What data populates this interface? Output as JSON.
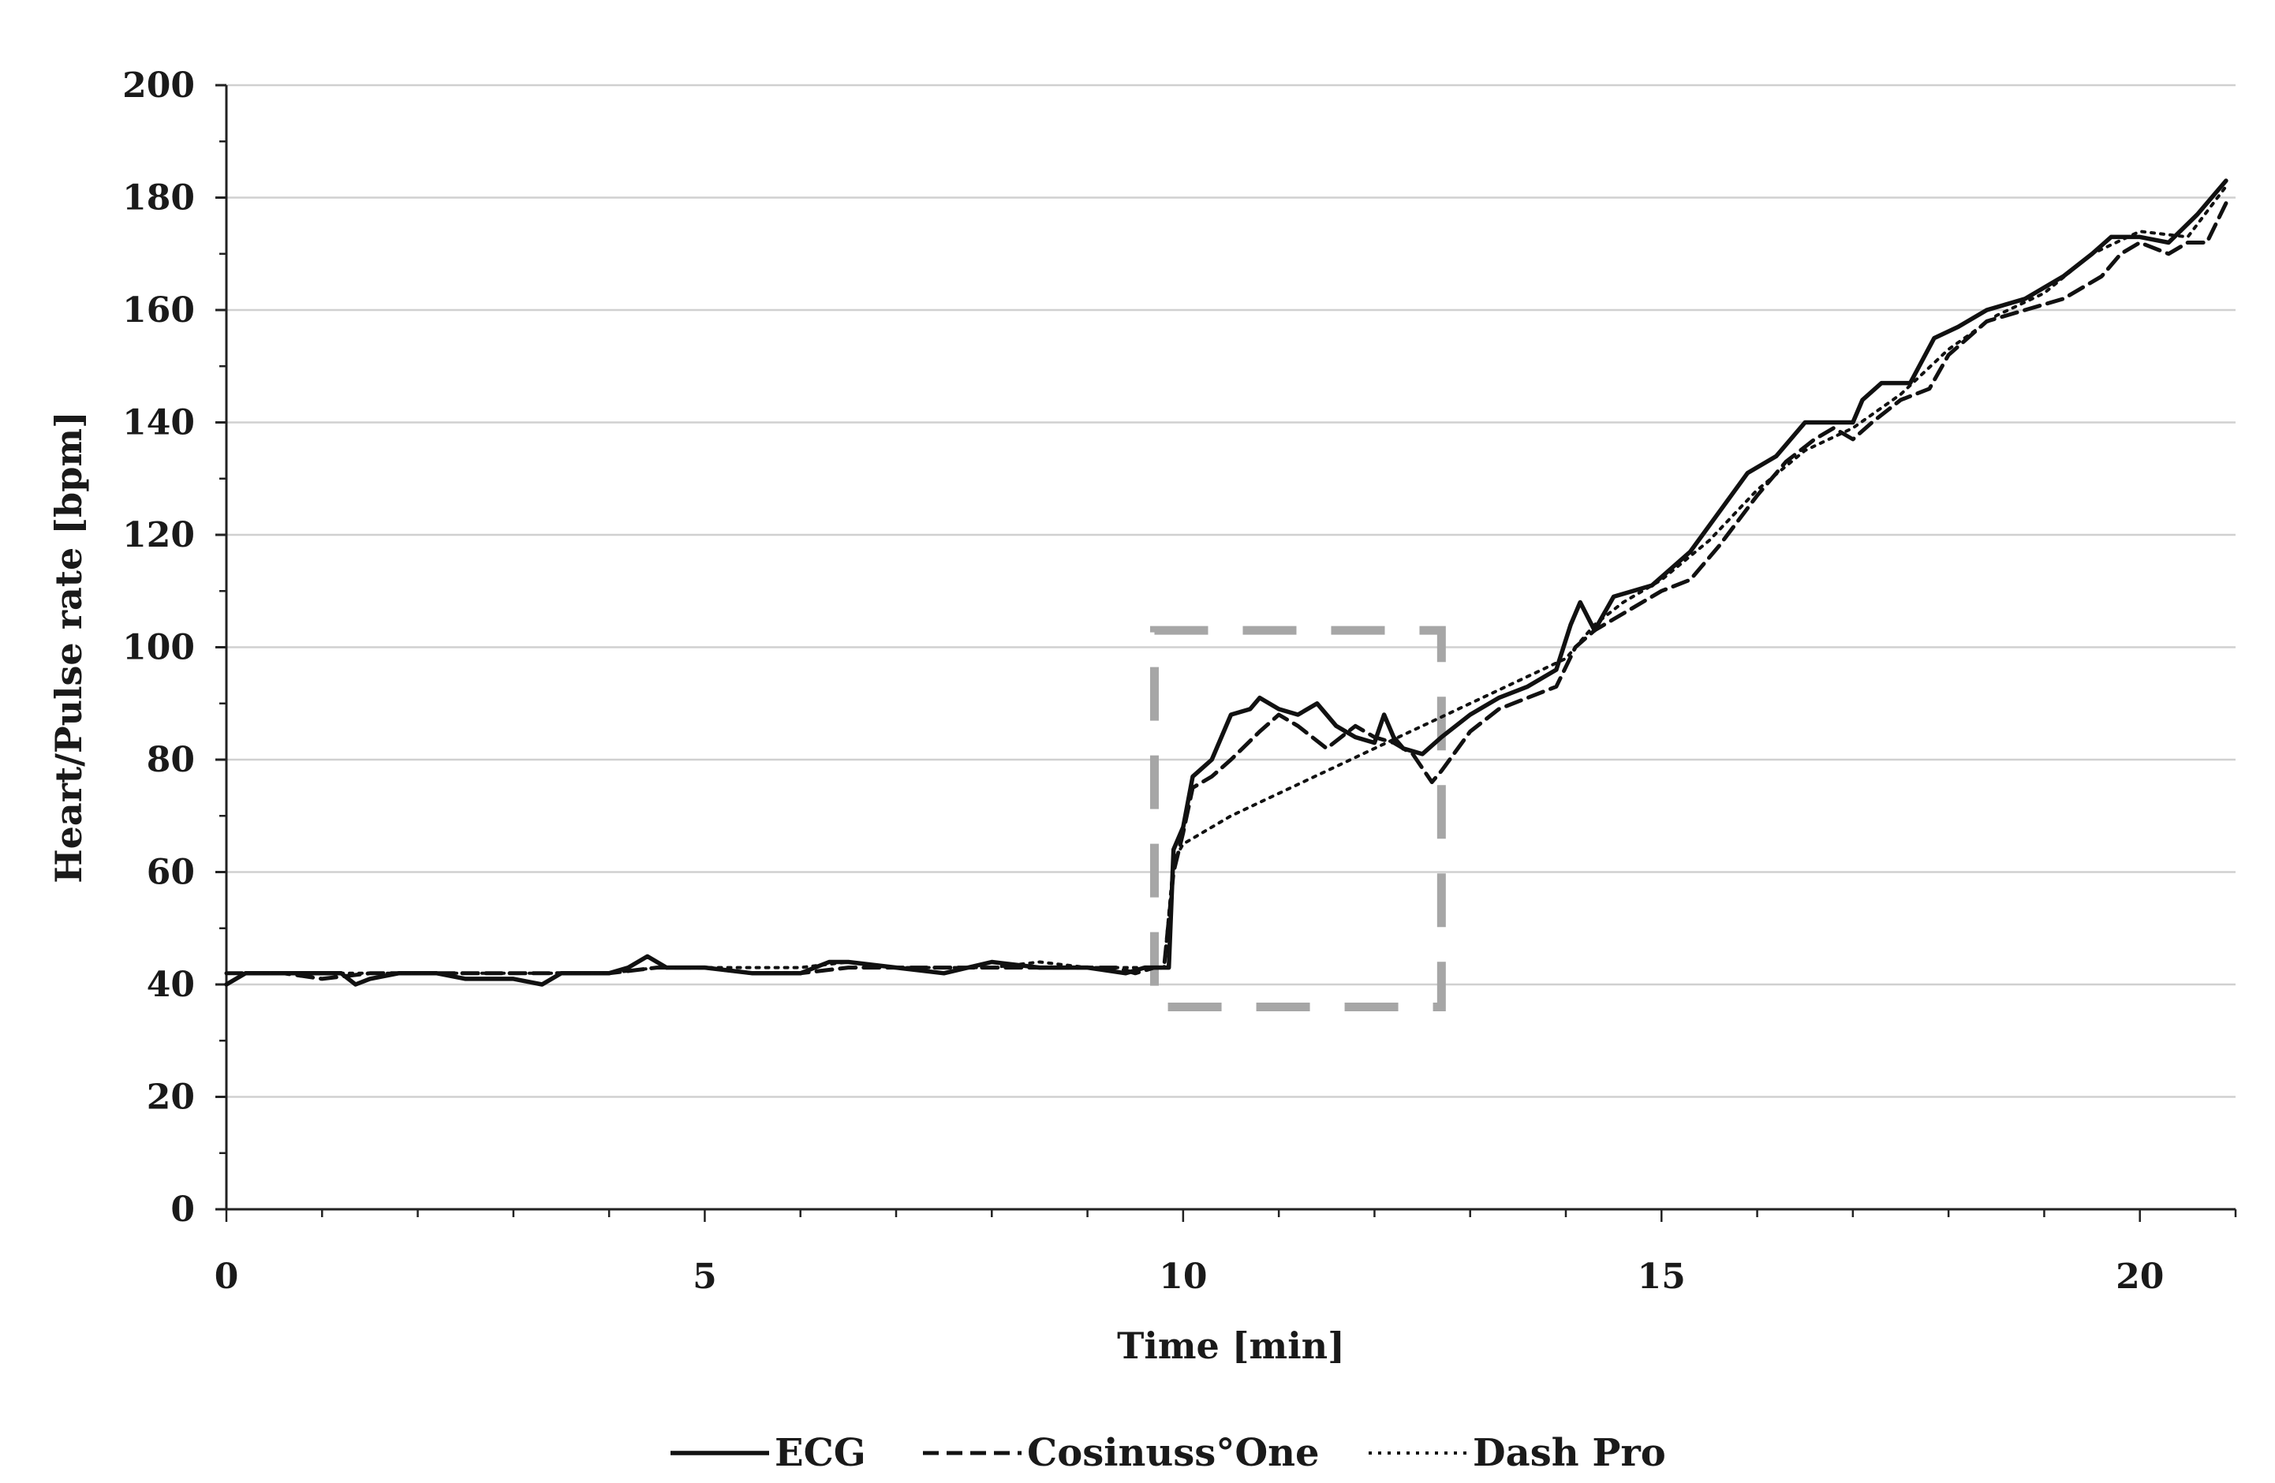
{
  "chart_data": {
    "type": "line",
    "title": "",
    "xlabel": "Time [min]",
    "ylabel": "Heart/Pulse rate [bpm]",
    "xlim": [
      0,
      21
    ],
    "ylim": [
      0,
      200
    ],
    "xticks": [
      0,
      5,
      10,
      15,
      20
    ],
    "yticks": [
      0,
      20,
      40,
      60,
      80,
      100,
      120,
      140,
      160,
      180,
      200
    ],
    "grid": "horizontal",
    "legend_position": "bottom-center",
    "annotation": "dashed gray rectangle highlighting approx. 9.7–12.7 min",
    "highlight_box": {
      "x": [
        9.7,
        12.7
      ],
      "y": [
        36,
        103
      ]
    },
    "series": [
      {
        "name": "ECG",
        "style": "solid",
        "x": [
          0,
          0.2,
          0.4,
          0.8,
          1.2,
          1.35,
          1.5,
          1.8,
          2.2,
          2.5,
          3.0,
          3.3,
          3.5,
          4.0,
          4.2,
          4.4,
          4.6,
          5.0,
          5.5,
          6.0,
          6.3,
          6.5,
          7.0,
          7.5,
          8.0,
          8.5,
          9.0,
          9.4,
          9.6,
          9.8,
          9.85,
          9.9,
          10.0,
          10.1,
          10.3,
          10.5,
          10.7,
          10.8,
          11.0,
          11.2,
          11.4,
          11.6,
          11.8,
          12.0,
          12.1,
          12.2,
          12.3,
          12.5,
          12.7,
          13.0,
          13.3,
          13.6,
          13.9,
          14.05,
          14.15,
          14.3,
          14.5,
          14.7,
          14.9,
          15.1,
          15.3,
          15.6,
          15.9,
          16.2,
          16.5,
          16.7,
          17.0,
          17.1,
          17.3,
          17.6,
          17.85,
          18.1,
          18.4,
          18.8,
          19.2,
          19.5,
          19.7,
          20.0,
          20.3,
          20.6,
          20.9
        ],
        "values": [
          40,
          42,
          42,
          42,
          42,
          40,
          41,
          42,
          42,
          41,
          41,
          40,
          42,
          42,
          43,
          45,
          43,
          43,
          42,
          42,
          44,
          44,
          43,
          42,
          44,
          43,
          43,
          42,
          43,
          43,
          43,
          64,
          68,
          77,
          80,
          88,
          89,
          91,
          89,
          88,
          90,
          86,
          84,
          83,
          88,
          84,
          82,
          81,
          84,
          88,
          91,
          93,
          96,
          104,
          108,
          103,
          109,
          110,
          111,
          114,
          117,
          124,
          131,
          134,
          140,
          140,
          140,
          144,
          147,
          147,
          155,
          157,
          160,
          162,
          166,
          170,
          173,
          173,
          172,
          177,
          183
        ]
      },
      {
        "name": "Cosinuss°One",
        "style": "dashed",
        "x": [
          0,
          0.3,
          0.6,
          1.0,
          1.5,
          2.0,
          2.5,
          3.0,
          3.5,
          4.0,
          4.5,
          5.0,
          5.5,
          6.0,
          6.5,
          7.0,
          7.5,
          8.0,
          8.5,
          9.0,
          9.3,
          9.5,
          9.7,
          9.8,
          9.9,
          10.0,
          10.1,
          10.3,
          10.5,
          10.8,
          11.0,
          11.2,
          11.5,
          11.8,
          12.0,
          12.2,
          12.4,
          12.6,
          12.7,
          13.0,
          13.3,
          13.6,
          13.9,
          14.1,
          14.3,
          14.5,
          14.8,
          15.0,
          15.3,
          15.6,
          16.0,
          16.3,
          16.6,
          16.8,
          17.0,
          17.2,
          17.5,
          17.8,
          18.0,
          18.4,
          18.8,
          19.2,
          19.6,
          19.8,
          20.0,
          20.3,
          20.5,
          20.7,
          20.9
        ],
        "values": [
          42,
          42,
          42,
          41,
          42,
          42,
          42,
          42,
          42,
          42,
          43,
          43,
          42,
          42,
          43,
          43,
          43,
          43,
          43,
          43,
          43,
          42,
          43,
          43,
          60,
          67,
          75,
          77,
          80,
          85,
          88,
          86,
          82,
          86,
          84,
          83,
          81,
          76,
          78,
          85,
          89,
          91,
          93,
          100,
          103,
          105,
          108,
          110,
          112,
          118,
          127,
          133,
          137,
          139,
          137,
          140,
          144,
          146,
          152,
          158,
          160,
          162,
          166,
          170,
          172,
          170,
          172,
          172,
          179
        ]
      },
      {
        "name": "Dash Pro",
        "style": "dotted",
        "x": [
          0,
          0.5,
          1.0,
          1.5,
          2.0,
          2.5,
          3.0,
          3.5,
          4.0,
          4.5,
          5.0,
          5.5,
          6.0,
          6.5,
          7.0,
          7.5,
          8.0,
          8.5,
          9.0,
          9.5,
          9.8,
          9.9,
          10.0,
          10.5,
          11.0,
          11.5,
          12.0,
          12.5,
          13.0,
          13.5,
          14.0,
          14.3,
          14.6,
          15.0,
          15.5,
          16.0,
          16.5,
          17.0,
          17.5,
          18.0,
          18.5,
          19.0,
          19.5,
          20.0,
          20.5,
          20.9
        ],
        "values": [
          42,
          42,
          42,
          42,
          42,
          42,
          42,
          42,
          42,
          43,
          43,
          43,
          43,
          44,
          43,
          43,
          43,
          44,
          43,
          43,
          43,
          62,
          65,
          70,
          74,
          78,
          82,
          86,
          90,
          94,
          98,
          104,
          108,
          112,
          119,
          128,
          135,
          139,
          145,
          153,
          159,
          163,
          170,
          174,
          173,
          182
        ]
      }
    ]
  }
}
